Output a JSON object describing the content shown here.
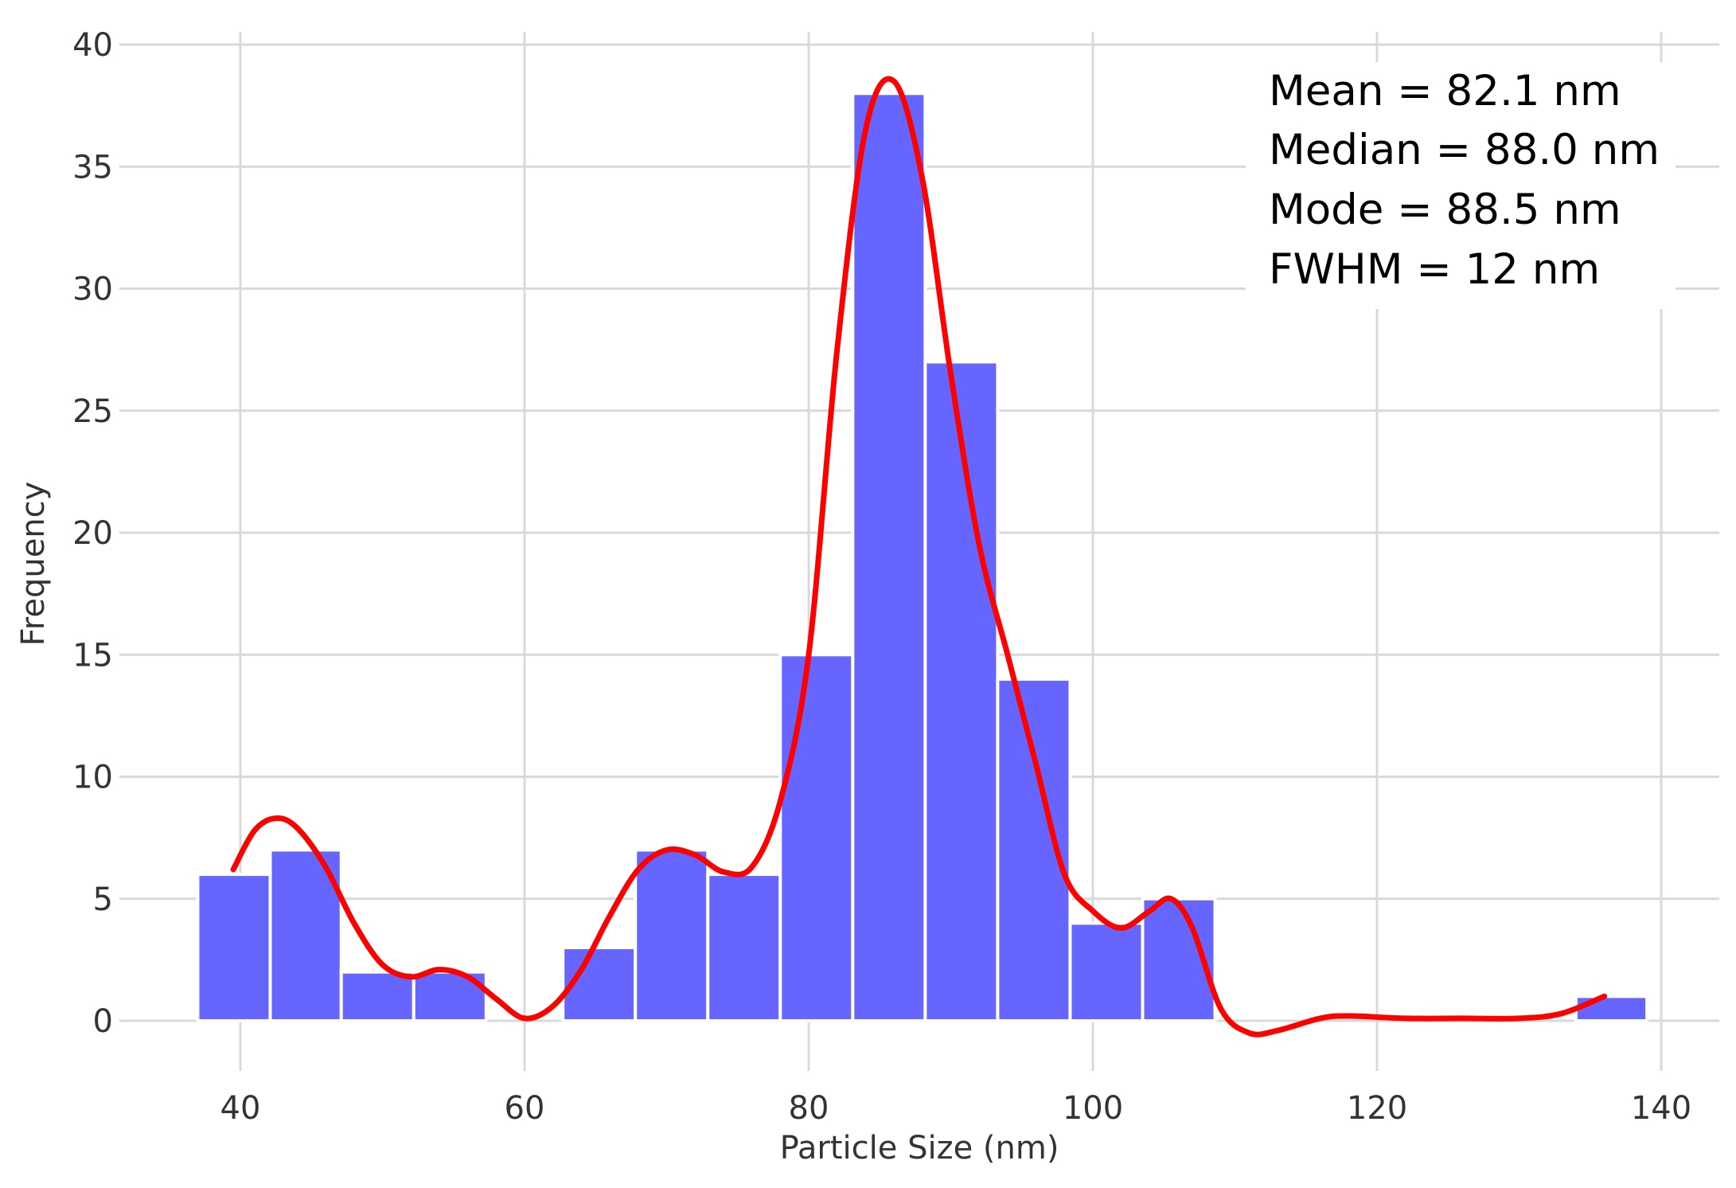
{
  "chart_data": {
    "type": "bar",
    "title": "",
    "xlabel": "Particle Size (nm)",
    "ylabel": "Frequency",
    "xlim": [
      32,
      142
    ],
    "ylim": [
      -2,
      40
    ],
    "grid": true,
    "x_ticks": [
      40,
      60,
      80,
      100,
      120,
      140
    ],
    "y_ticks": [
      0,
      5,
      10,
      15,
      20,
      25,
      30,
      35,
      40
    ],
    "colors": {
      "bars": "#6666ff",
      "kde": "#ff0000",
      "grid": "#d9d9d9"
    },
    "bins": [
      {
        "start": 37.0,
        "end": 42.1,
        "count": 6
      },
      {
        "start": 42.1,
        "end": 47.1,
        "count": 7
      },
      {
        "start": 47.1,
        "end": 52.2,
        "count": 2
      },
      {
        "start": 52.2,
        "end": 57.3,
        "count": 2
      },
      {
        "start": 62.7,
        "end": 67.8,
        "count": 3
      },
      {
        "start": 67.8,
        "end": 72.9,
        "count": 7
      },
      {
        "start": 72.9,
        "end": 78.0,
        "count": 6
      },
      {
        "start": 78.0,
        "end": 83.1,
        "count": 15
      },
      {
        "start": 83.1,
        "end": 88.2,
        "count": 38
      },
      {
        "start": 88.2,
        "end": 93.3,
        "count": 27
      },
      {
        "start": 93.3,
        "end": 98.4,
        "count": 14
      },
      {
        "start": 98.4,
        "end": 103.5,
        "count": 4
      },
      {
        "start": 103.5,
        "end": 108.6,
        "count": 5
      },
      {
        "start": 134.0,
        "end": 139.0,
        "count": 1
      }
    ],
    "kde_curve": {
      "x": [
        39.5,
        41,
        42.5,
        44,
        46,
        48,
        50,
        52,
        54,
        56,
        58,
        60,
        62,
        64,
        66,
        68,
        70,
        72,
        74,
        76,
        78,
        80,
        82,
        84,
        86,
        88,
        90,
        92,
        94,
        96,
        98,
        100,
        102,
        104,
        105.5,
        107,
        109,
        111,
        113,
        116,
        118,
        122,
        126,
        130,
        133,
        136
      ],
      "y": [
        6.2,
        7.8,
        8.3,
        7.9,
        6.3,
        4.0,
        2.3,
        1.8,
        2.1,
        1.8,
        0.9,
        0.1,
        0.6,
        2.1,
        4.3,
        6.2,
        7.0,
        6.8,
        6.1,
        6.3,
        9.0,
        15.0,
        27.5,
        36.5,
        38.5,
        34.5,
        26.5,
        19.5,
        15.0,
        10.5,
        6.0,
        4.5,
        3.8,
        4.5,
        5.0,
        3.8,
        0.5,
        -0.5,
        -0.4,
        0.1,
        0.2,
        0.1,
        0.1,
        0.1,
        0.3,
        1.0
      ]
    },
    "annotations": [
      "Mean = 82.1 nm",
      "Median = 88.0 nm",
      "Mode = 88.5 nm",
      "FWHM = 12 nm"
    ]
  }
}
